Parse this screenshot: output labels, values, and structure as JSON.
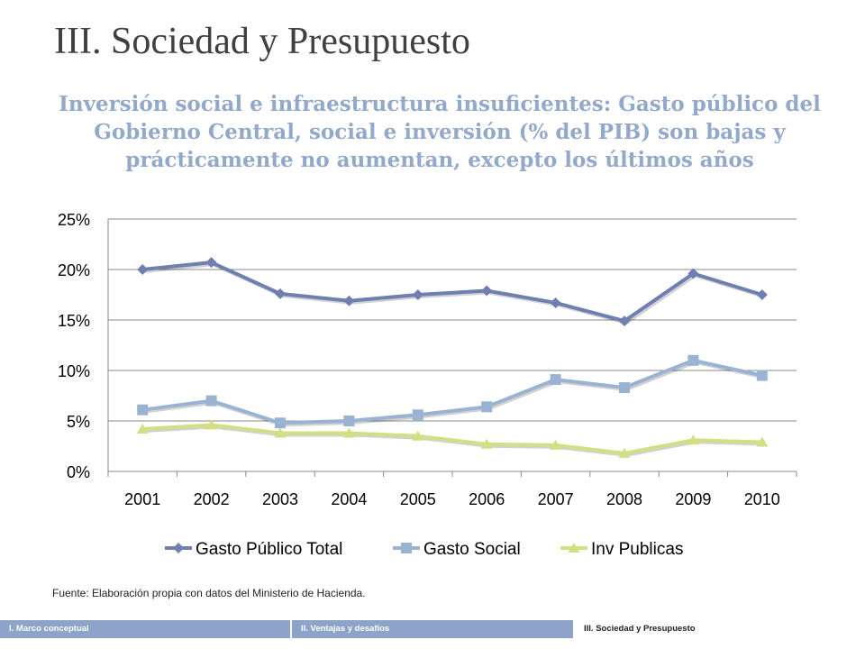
{
  "slide": {
    "title": "III. Sociedad y Presupuesto",
    "subtitle": "Inversión social e infraestructura insuficientes: Gasto público del Gobierno Central, social e inversión (% del PIB) son bajas y prácticamente no aumentan, excepto los últimos años",
    "source": "Fuente: Elaboración propia con datos del Ministerio de Hacienda."
  },
  "footer": {
    "items": [
      {
        "label": "I. Marco conceptual",
        "active": false
      },
      {
        "label": "II. Ventajas y desafíos",
        "active": false
      },
      {
        "label": "III. Sociedad y Presupuesto",
        "active": true
      }
    ]
  },
  "chart_data": {
    "type": "line",
    "title": "",
    "xlabel": "",
    "ylabel": "",
    "x": [
      "2001",
      "2002",
      "2003",
      "2004",
      "2005",
      "2006",
      "2007",
      "2008",
      "2009",
      "2010"
    ],
    "ylim": [
      0,
      25
    ],
    "yticks": [
      0,
      5,
      10,
      15,
      20,
      25
    ],
    "ytick_labels": [
      "0%",
      "5%",
      "10%",
      "15%",
      "20%",
      "25%"
    ],
    "grid": true,
    "legend": "bottom",
    "series": [
      {
        "name": "Gasto Público Total",
        "color": "#6F7FB0",
        "marker": "diamond",
        "values": [
          20.0,
          20.7,
          17.6,
          16.9,
          17.5,
          17.9,
          16.7,
          14.9,
          19.6,
          17.5
        ]
      },
      {
        "name": "Gasto Social",
        "color": "#9BB3D2",
        "marker": "square",
        "values": [
          6.1,
          7.0,
          4.8,
          5.0,
          5.6,
          6.4,
          9.1,
          8.3,
          11.0,
          9.5
        ]
      },
      {
        "name": "Inv Publicas",
        "color": "#D4DE83",
        "marker": "triangle",
        "values": [
          4.2,
          4.6,
          3.8,
          3.8,
          3.5,
          2.7,
          2.6,
          1.8,
          3.1,
          2.9
        ]
      }
    ]
  }
}
